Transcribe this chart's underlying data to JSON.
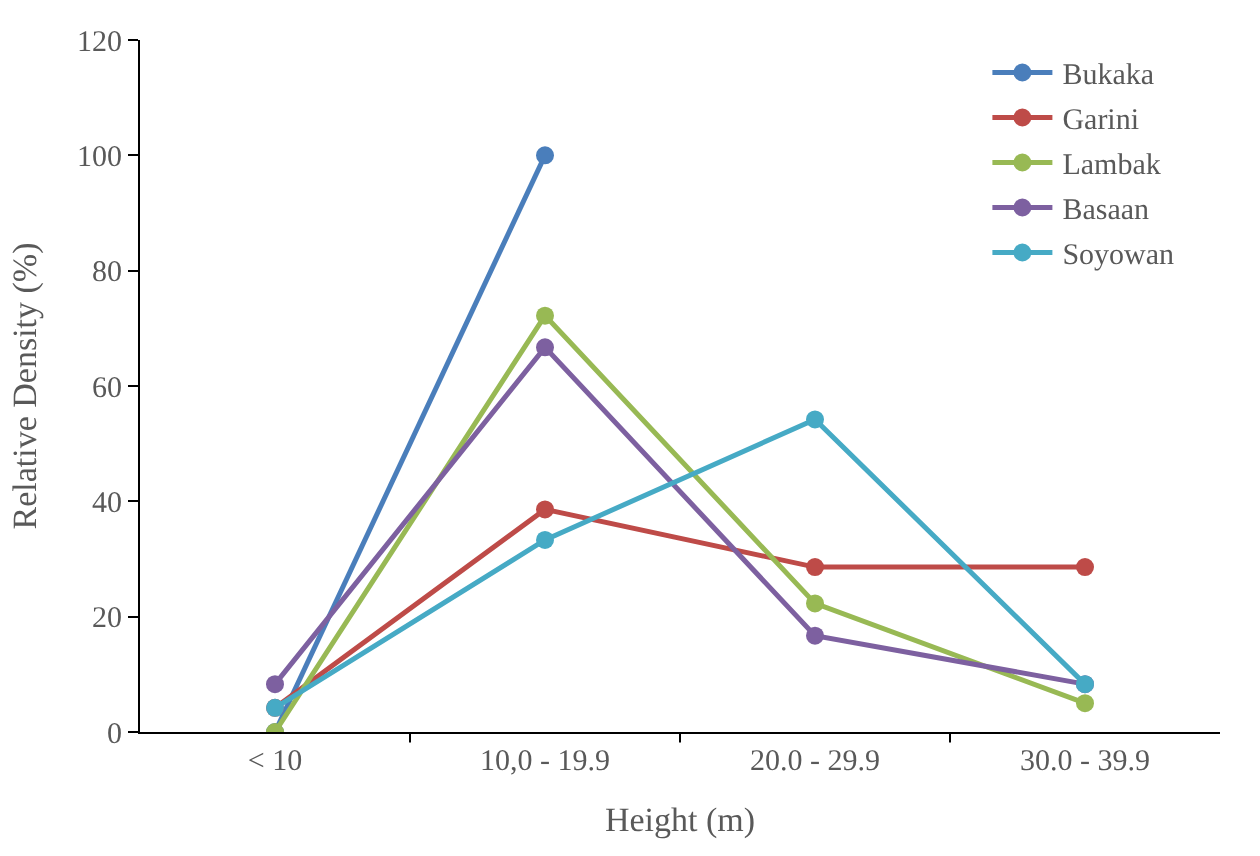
{
  "chart_data": {
    "type": "line",
    "xlabel": "Height (m)",
    "ylabel": "Relative Density (%)",
    "categories": [
      "< 10",
      "10,0 - 19.9",
      "20.0 - 29.9",
      "30.0 - 39.9"
    ],
    "series": [
      {
        "name": "Bukaka",
        "color": "#4a7ebb",
        "values": [
          0,
          100,
          null,
          null
        ]
      },
      {
        "name": "Garini",
        "color": "#be4b48",
        "values": [
          4.2,
          38.6,
          28.6,
          28.6
        ]
      },
      {
        "name": "Lambak",
        "color": "#98b954",
        "values": [
          0,
          72.2,
          22.3,
          5
        ]
      },
      {
        "name": "Basaan",
        "color": "#7d60a0",
        "values": [
          8.3,
          66.7,
          16.7,
          8.3
        ]
      },
      {
        "name": "Soyowan",
        "color": "#46aac5",
        "values": [
          4.2,
          33.3,
          54.2,
          8.3
        ]
      }
    ],
    "ylim": [
      0,
      120
    ],
    "yticks": [
      0,
      20,
      40,
      60,
      80,
      100,
      120
    ],
    "legend": "top right",
    "marker": "circle",
    "line_style": "solid"
  }
}
